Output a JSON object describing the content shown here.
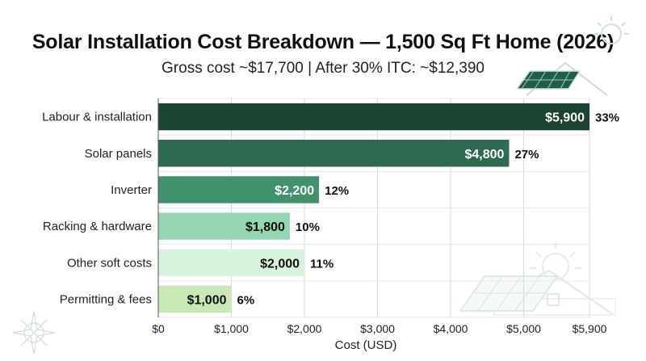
{
  "header": {
    "title": "Solar Installation Cost Breakdown — 1,500 Sq Ft Home (2026)",
    "subtitle": "Gross cost ~$17,700 | After 30% ITC: ~$12,390"
  },
  "chart_data": {
    "type": "bar",
    "orientation": "horizontal",
    "title": "Solar Installation Cost Breakdown — 1,500 Sq Ft Home (2026)",
    "subtitle": "Gross cost ~$17,700 | After 30% ITC: ~$12,390",
    "xlabel": "Cost (USD)",
    "ylabel": "",
    "categories": [
      "Labour & installation",
      "Solar panels",
      "Inverter",
      "Racking & hardware",
      "Other soft costs",
      "Permitting & fees"
    ],
    "values": [
      5900,
      4800,
      2200,
      1800,
      2000,
      1000
    ],
    "value_labels": [
      "$5,900",
      "$4,800",
      "$2,200",
      "$1,800",
      "$2,000",
      "$1,000"
    ],
    "percent_labels": [
      "33%",
      "27%",
      "12%",
      "10%",
      "11%",
      "6%"
    ],
    "colors": [
      "#1b4332",
      "#2d6a4f",
      "#40916c",
      "#95d5b2",
      "#d8f3dc",
      "#c7e9b4"
    ],
    "label_colors": [
      "#ffffff",
      "#ffffff",
      "#ffffff",
      "#111111",
      "#111111",
      "#111111"
    ],
    "xticks": [
      0,
      1000,
      2000,
      3000,
      4000,
      5000,
      5900
    ],
    "xtick_labels": [
      "$0",
      "$1,000",
      "$2,000",
      "$3,000",
      "$4,000",
      "$5,000",
      "$5,900"
    ],
    "xlim": [
      0,
      5900
    ],
    "grid": true,
    "decorations": [
      "sun-icon",
      "solar-roof-icon",
      "compass-rose-icon"
    ]
  }
}
